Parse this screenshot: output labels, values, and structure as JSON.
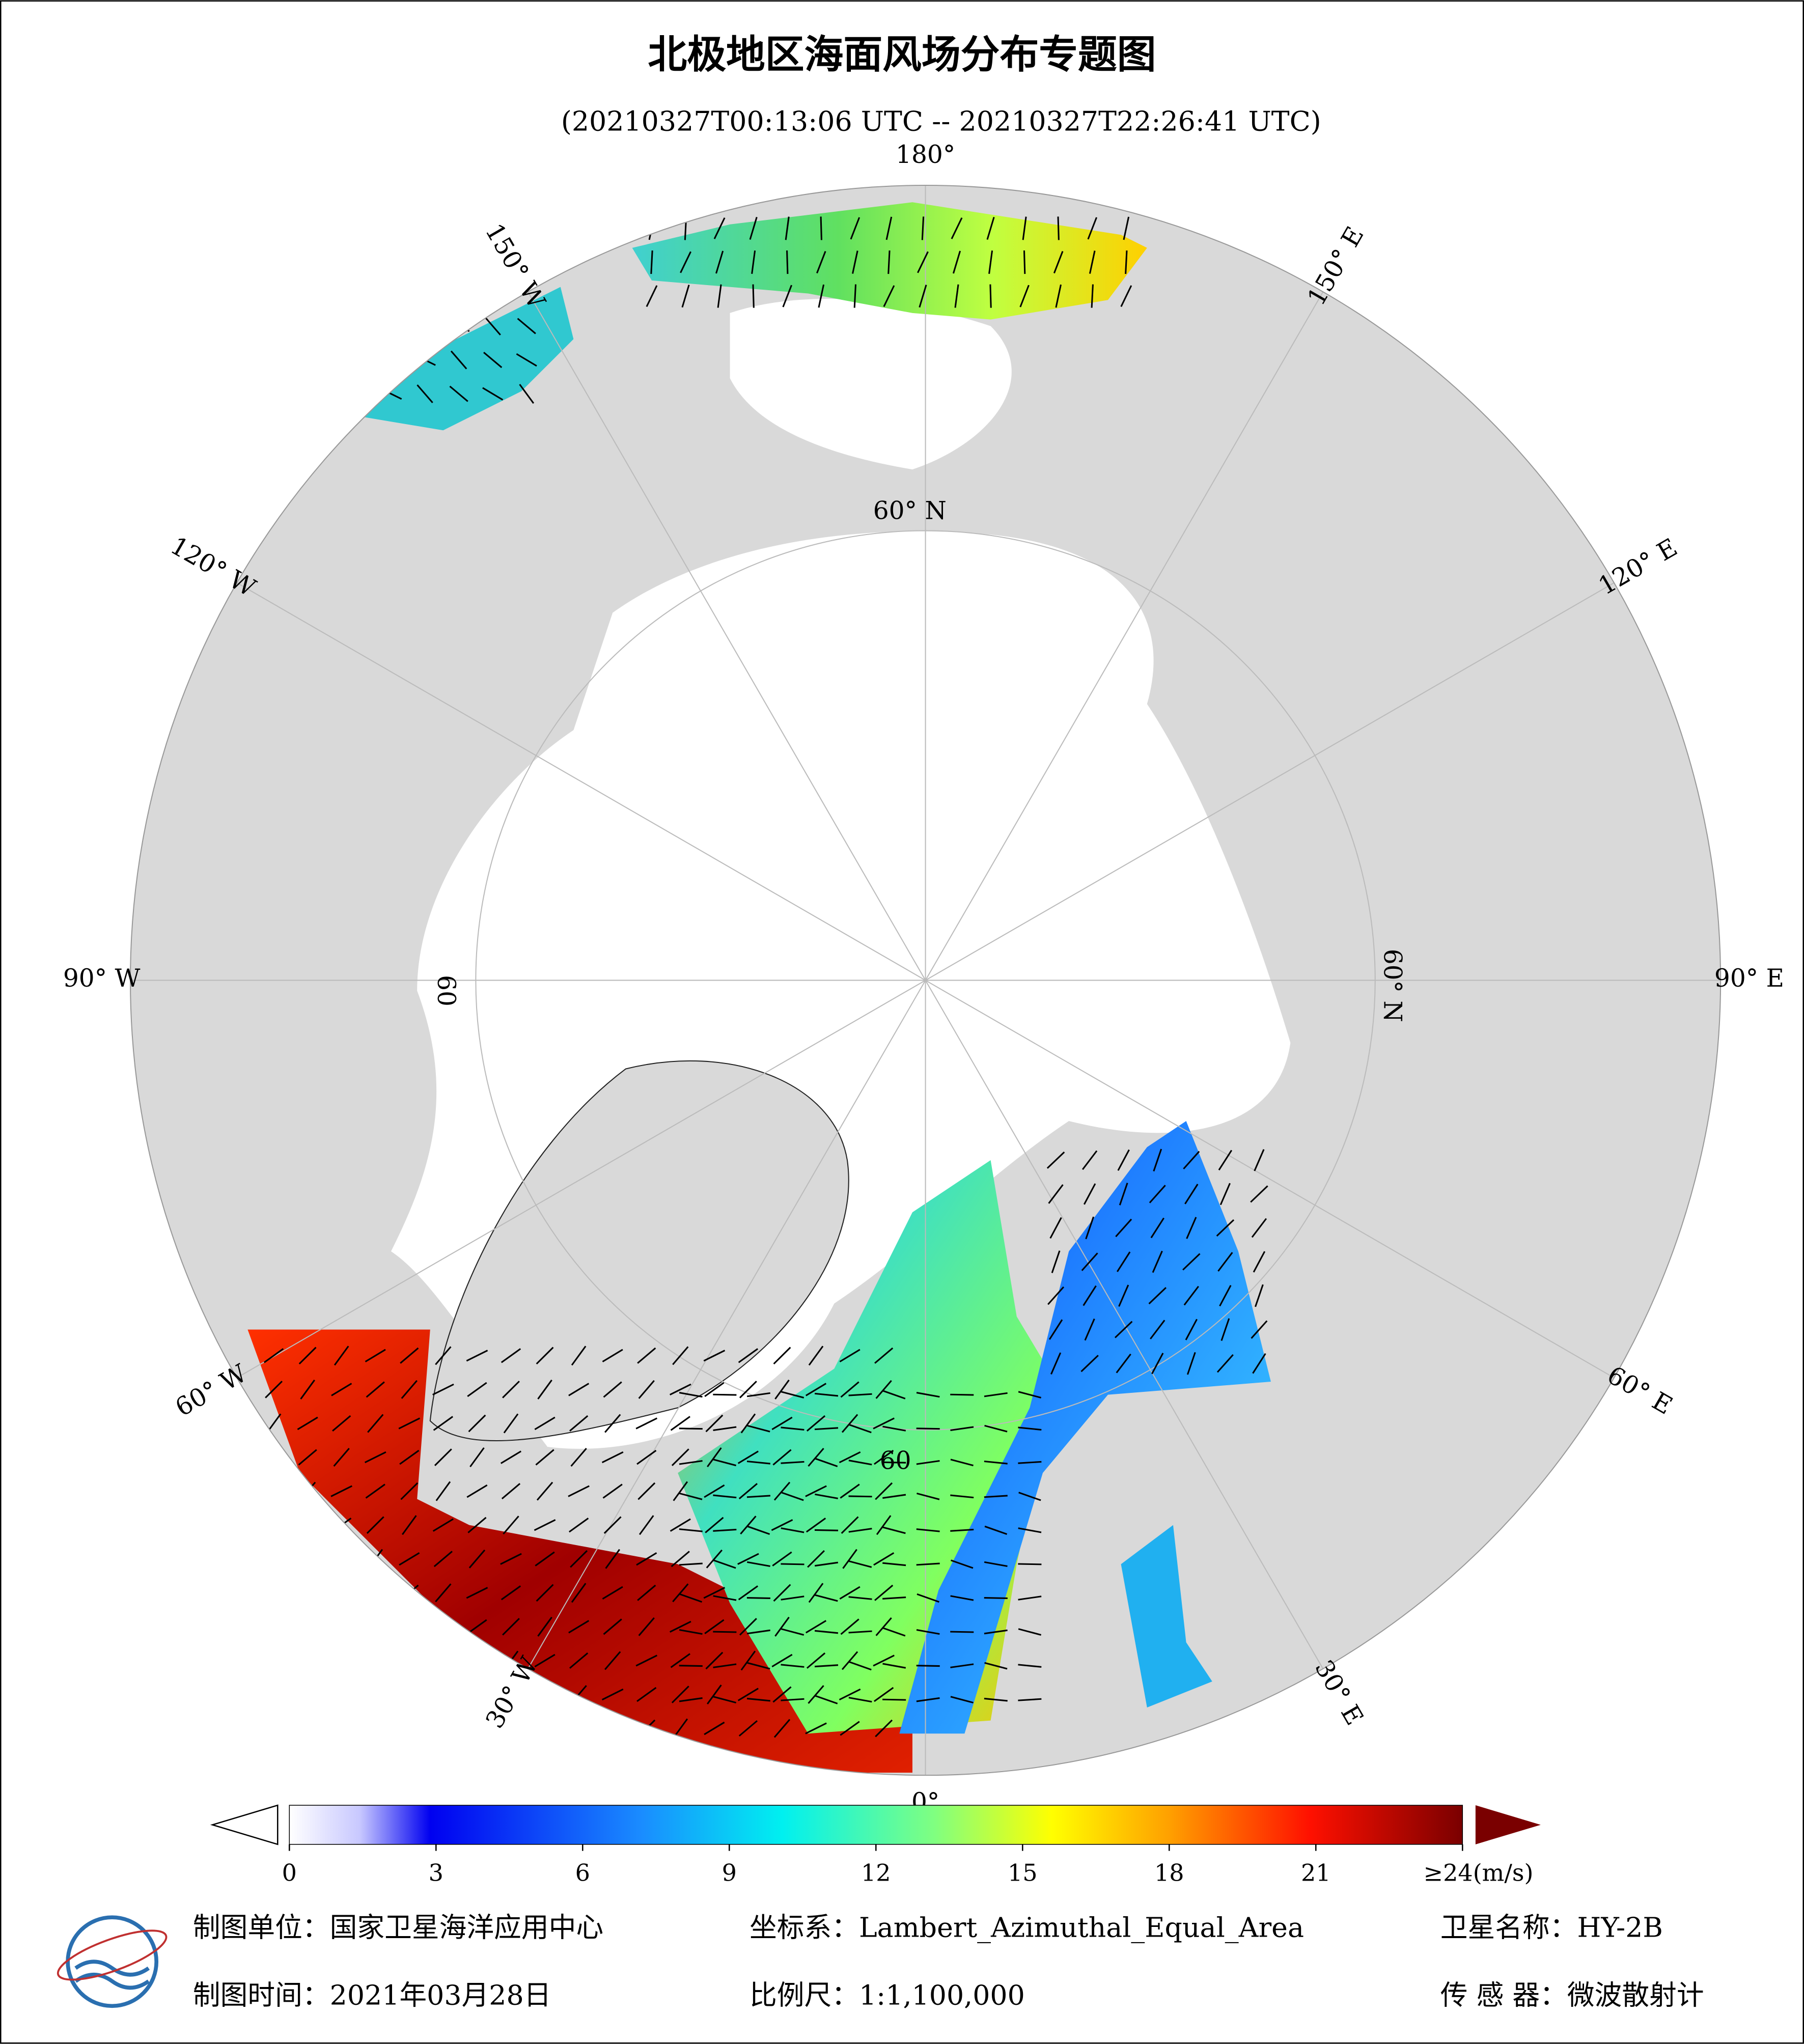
{
  "header": {
    "title": "北极地区海面风场分布专题图",
    "subtitle": "(20210327T00:13:06 UTC -- 20210327T22:26:41 UTC)"
  },
  "map": {
    "longitude_labels": [
      "180°",
      "150° E",
      "120° E",
      "90° E",
      "60° E",
      "30° E",
      "0°",
      "30° W",
      "60° W",
      "90° W",
      "120° W",
      "150° W"
    ],
    "latitude_labels": [
      "60° N",
      "60",
      "60° N",
      "60"
    ]
  },
  "colorbar": {
    "lim": [
      0,
      24
    ],
    "ticks": [
      0,
      3,
      6,
      9,
      12,
      15,
      18,
      21,
      {
        "value": 24,
        "label": "≥24(m/s)"
      }
    ]
  },
  "footer": {
    "items": [
      "制图单位：国家卫星海洋应用中心",
      "坐标系：Lambert_Azimuthal_Equal_Area",
      "卫星名称：HY-2B",
      "制图时间：2021年03月28日",
      "比例尺：1:1,100,000",
      "传 感 器：微波散射计"
    ]
  }
}
